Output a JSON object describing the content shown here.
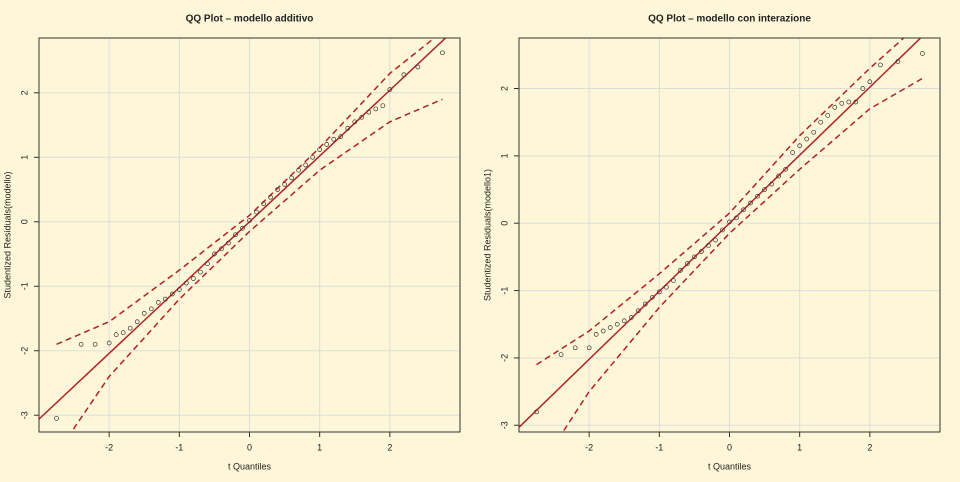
{
  "chart_data": [
    {
      "type": "scatter",
      "title": "QQ Plot – modello additivo",
      "xlabel": "t Quantiles",
      "ylabel": "Studentized Residuals(modello)",
      "xlim": [
        -3,
        3
      ],
      "ylim": [
        -3.26,
        2.85
      ],
      "xticks": [
        -2,
        -1,
        0,
        1,
        2
      ],
      "yticks": [
        -3,
        -2,
        -1,
        0,
        1,
        2
      ],
      "grid": true,
      "color": "#333333",
      "line_color": "#b22222",
      "reference_line": {
        "intercept": 0,
        "slope": 1.02
      },
      "envelope": {
        "x": [
          -2.75,
          -2,
          -1,
          0,
          1,
          2,
          2.75
        ],
        "upper": [
          -1.9,
          -1.55,
          -0.75,
          0.1,
          1.15,
          2.3,
          2.95
        ],
        "lower": [
          -3.6,
          -2.4,
          -1.2,
          -0.15,
          0.8,
          1.55,
          1.9
        ]
      },
      "x": [
        -2.75,
        -2.4,
        -2.2,
        -2.0,
        -1.9,
        -1.8,
        -1.7,
        -1.6,
        -1.5,
        -1.4,
        -1.3,
        -1.2,
        -1.1,
        -1.0,
        -0.9,
        -0.8,
        -0.7,
        -0.6,
        -0.5,
        -0.4,
        -0.3,
        -0.2,
        -0.1,
        0,
        0.1,
        0.2,
        0.3,
        0.4,
        0.5,
        0.6,
        0.7,
        0.8,
        0.9,
        1.0,
        1.1,
        1.2,
        1.3,
        1.4,
        1.5,
        1.6,
        1.7,
        1.8,
        1.9,
        2.0,
        2.2,
        2.4,
        2.75
      ],
      "values": [
        -3.05,
        -1.9,
        -1.9,
        -1.88,
        -1.75,
        -1.72,
        -1.65,
        -1.55,
        -1.42,
        -1.35,
        -1.25,
        -1.2,
        -1.12,
        -1.05,
        -0.95,
        -0.88,
        -0.78,
        -0.65,
        -0.5,
        -0.42,
        -0.33,
        -0.2,
        -0.1,
        0.02,
        0.15,
        0.28,
        0.38,
        0.5,
        0.58,
        0.68,
        0.8,
        0.88,
        1.0,
        1.12,
        1.2,
        1.28,
        1.32,
        1.45,
        1.55,
        1.62,
        1.7,
        1.75,
        1.8,
        2.05,
        2.28,
        2.4,
        2.62
      ]
    },
    {
      "type": "scatter",
      "title": "QQ Plot – modello con interazione",
      "xlabel": "t Quantiles",
      "ylabel": "Studentized Residuals(modello1)",
      "xlim": [
        -3,
        3
      ],
      "ylim": [
        -3.1,
        2.75
      ],
      "xticks": [
        -2,
        -1,
        0,
        1,
        2
      ],
      "yticks": [
        -3,
        -2,
        -1,
        0,
        1,
        2
      ],
      "grid": true,
      "color": "#333333",
      "line_color": "#b22222",
      "reference_line": {
        "intercept": 0,
        "slope": 1.01
      },
      "envelope": {
        "x": [
          -2.75,
          -2,
          -1,
          0,
          1,
          2,
          2.75
        ],
        "upper": [
          -2.1,
          -1.6,
          -0.75,
          0.15,
          1.3,
          2.3,
          3.0
        ],
        "lower": [
          -3.7,
          -2.5,
          -1.25,
          -0.15,
          0.8,
          1.7,
          2.15
        ]
      },
      "x": [
        -2.75,
        -2.4,
        -2.2,
        -2.0,
        -1.9,
        -1.8,
        -1.7,
        -1.6,
        -1.5,
        -1.4,
        -1.3,
        -1.2,
        -1.1,
        -1.0,
        -0.9,
        -0.8,
        -0.7,
        -0.6,
        -0.5,
        -0.4,
        -0.3,
        -0.2,
        -0.1,
        0,
        0.1,
        0.2,
        0.3,
        0.4,
        0.5,
        0.6,
        0.7,
        0.8,
        0.9,
        1.0,
        1.1,
        1.2,
        1.3,
        1.4,
        1.5,
        1.6,
        1.7,
        1.8,
        1.9,
        2.0,
        2.15,
        2.4,
        2.75
      ],
      "values": [
        -2.8,
        -1.95,
        -1.85,
        -1.85,
        -1.65,
        -1.6,
        -1.55,
        -1.5,
        -1.45,
        -1.4,
        -1.3,
        -1.2,
        -1.1,
        -1.02,
        -0.95,
        -0.85,
        -0.7,
        -0.6,
        -0.5,
        -0.42,
        -0.33,
        -0.25,
        -0.1,
        0.02,
        0.08,
        0.2,
        0.3,
        0.4,
        0.5,
        0.58,
        0.7,
        0.8,
        1.05,
        1.15,
        1.25,
        1.35,
        1.5,
        1.6,
        1.72,
        1.78,
        1.8,
        1.8,
        2.0,
        2.1,
        2.35,
        2.4,
        2.52
      ]
    }
  ]
}
